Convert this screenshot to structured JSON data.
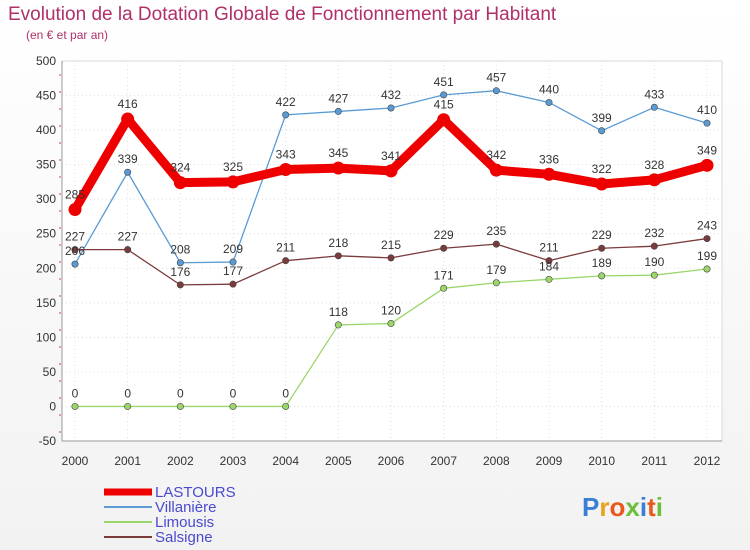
{
  "chart_data": {
    "type": "line",
    "title": "Evolution de la Dotation Globale de Fonctionnement par Habitant",
    "subtitle": "(en € et par an)",
    "xlabel": "",
    "ylabel": "",
    "categories": [
      "2000",
      "2001",
      "2002",
      "2003",
      "2004",
      "2005",
      "2006",
      "2007",
      "2008",
      "2009",
      "2010",
      "2011",
      "2012"
    ],
    "ylim": [
      -50,
      500
    ],
    "yticks": [
      -50,
      0,
      50,
      100,
      150,
      200,
      250,
      300,
      350,
      400,
      450,
      500
    ],
    "grid": true,
    "legend_position": "bottom-left",
    "series": [
      {
        "name": "Villanière",
        "color": "#5b9bd5",
        "values": [
          206,
          339,
          208,
          209,
          422,
          427,
          432,
          451,
          457,
          440,
          399,
          433,
          410
        ]
      },
      {
        "name": "Limousis",
        "color": "#9bd66a",
        "values": [
          0,
          0,
          0,
          0,
          0,
          118,
          120,
          171,
          179,
          184,
          189,
          190,
          199
        ]
      },
      {
        "name": "Salsigne",
        "color": "#7a3b3b",
        "values": [
          227,
          227,
          176,
          177,
          211,
          218,
          215,
          229,
          235,
          211,
          229,
          232,
          243
        ]
      },
      {
        "name": "LASTOURS",
        "color": "#ee0000",
        "values": [
          285,
          416,
          324,
          325,
          343,
          345,
          341,
          415,
          342,
          336,
          322,
          328,
          349
        ]
      }
    ]
  },
  "branding": {
    "logo_text": "Proxiti"
  }
}
